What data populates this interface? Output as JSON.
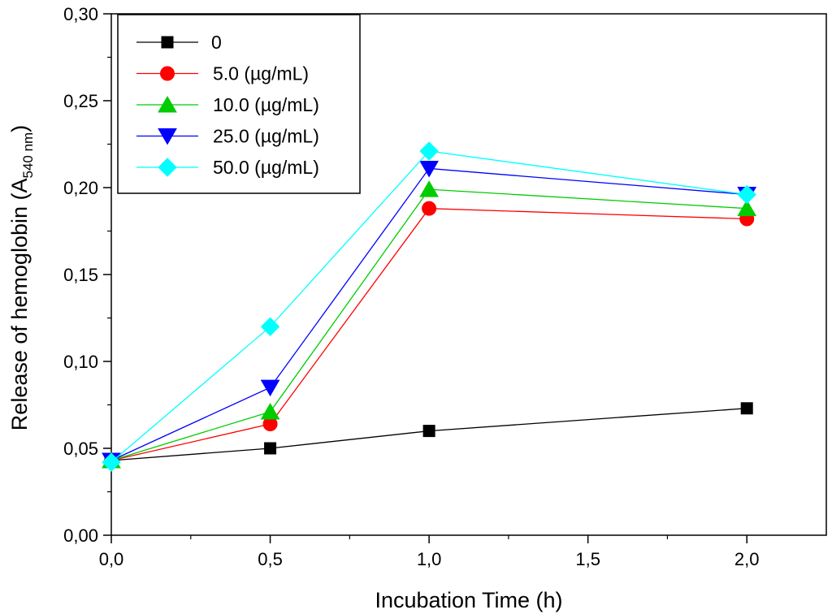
{
  "chart_data": {
    "type": "line",
    "title": "",
    "xlabel": "Incubation Time (h)",
    "ylabel_main": "Release of hemoglobin (A",
    "ylabel_sub": "540 nm",
    "ylabel_close": ")",
    "xlim": [
      0,
      2.25
    ],
    "ylim": [
      0,
      0.3
    ],
    "x_ticks": [
      0.0,
      0.5,
      1.0,
      1.5,
      2.0
    ],
    "x_tick_labels": [
      "0,0",
      "0,5",
      "1,0",
      "1,5",
      "2,0"
    ],
    "y_ticks": [
      0.0,
      0.05,
      0.1,
      0.15,
      0.2,
      0.25,
      0.3
    ],
    "y_tick_labels": [
      "0,00",
      "0,05",
      "0,10",
      "0,15",
      "0,20",
      "0,25",
      "0,30"
    ],
    "grid": false,
    "legend_position": "top-left",
    "x": [
      0.0,
      0.5,
      1.0,
      2.0
    ],
    "series": [
      {
        "name": "0",
        "color": "#000000",
        "marker": "square",
        "values": [
          0.043,
          0.05,
          0.06,
          0.073
        ]
      },
      {
        "name": "5.0 (µg/mL)",
        "color": "#ff0000",
        "marker": "circle",
        "values": [
          0.043,
          0.064,
          0.188,
          0.182
        ]
      },
      {
        "name": "10.0 (µg/mL)",
        "color": "#00cc00",
        "marker": "triangle-up",
        "values": [
          0.043,
          0.071,
          0.199,
          0.188
        ]
      },
      {
        "name": "25.0 (µg/mL)",
        "color": "#0000ff",
        "marker": "triangle-down",
        "values": [
          0.043,
          0.085,
          0.211,
          0.196
        ]
      },
      {
        "name": "50.0 (µg/mL)",
        "color": "#00ffff",
        "marker": "diamond",
        "values": [
          0.042,
          0.12,
          0.221,
          0.196
        ]
      }
    ]
  }
}
